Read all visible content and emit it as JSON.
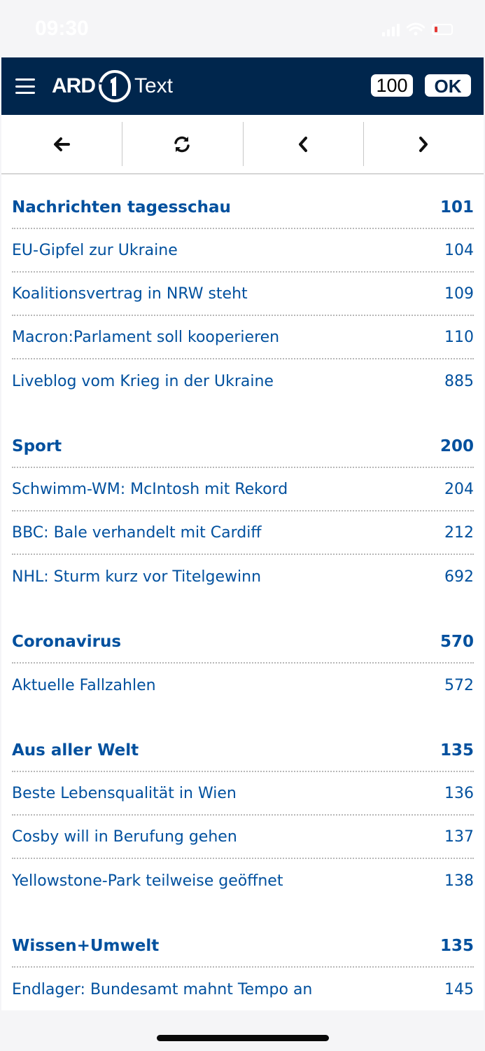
{
  "status_bar": {
    "time": "09:30",
    "battery_color": "#e53935"
  },
  "header": {
    "logo_ard": "ARD",
    "logo_text": "Text",
    "page_number": "100",
    "ok_label": "OK",
    "background_color": "#00264d"
  },
  "nav": {
    "icons": [
      "arrow-left-icon",
      "refresh-icon",
      "chevron-left-icon",
      "chevron-right-icon"
    ]
  },
  "sections": [
    {
      "title": "Nachrichten tagesschau",
      "page": "101",
      "items": [
        {
          "label": "EU-Gipfel zur Ukraine",
          "page": "104"
        },
        {
          "label": "Koalitionsvertrag in NRW steht",
          "page": "109"
        },
        {
          "label": "Macron:Parlament soll kooperieren",
          "page": "110"
        },
        {
          "label": "Liveblog vom Krieg in der Ukraine",
          "page": "885"
        }
      ]
    },
    {
      "title": "Sport",
      "page": "200",
      "items": [
        {
          "label": "Schwimm-WM: McIntosh mit Rekord",
          "page": "204"
        },
        {
          "label": "BBC: Bale verhandelt mit Cardiff",
          "page": "212"
        },
        {
          "label": "NHL: Sturm kurz vor Titelgewinn",
          "page": "692"
        }
      ]
    },
    {
      "title": "Coronavirus",
      "page": "570",
      "items": [
        {
          "label": "Aktuelle Fallzahlen",
          "page": "572"
        }
      ]
    },
    {
      "title": "Aus aller Welt",
      "page": "135",
      "items": [
        {
          "label": "Beste Lebensqualität in Wien",
          "page": "136"
        },
        {
          "label": "Cosby will in Berufung gehen",
          "page": "137"
        },
        {
          "label": "Yellowstone-Park teilweise geöffnet",
          "page": "138"
        }
      ]
    },
    {
      "title": "Wissen+Umwelt",
      "page": "135",
      "items": [
        {
          "label": "Endlager: Bundesamt mahnt Tempo an",
          "page": "145"
        }
      ]
    }
  ],
  "colors": {
    "link": "#00509e",
    "divider": "#b8b8b8"
  }
}
